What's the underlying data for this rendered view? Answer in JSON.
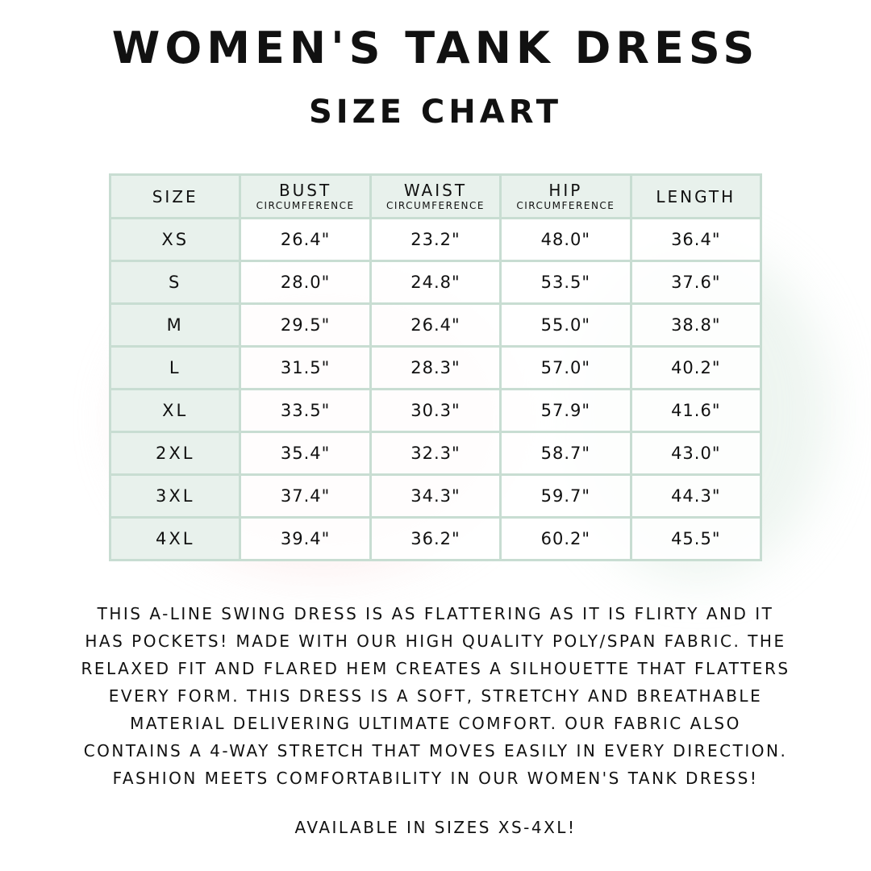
{
  "title": "Women's Tank Dress",
  "subtitle": "Size Chart",
  "colors": {
    "header_bg": "#e8f1ec",
    "border": "#c8ddd2"
  },
  "table": {
    "headers": [
      {
        "main": "Size",
        "sub": ""
      },
      {
        "main": "Bust",
        "sub": "Circumference"
      },
      {
        "main": "Waist",
        "sub": "Circumference"
      },
      {
        "main": "Hip",
        "sub": "Circumference"
      },
      {
        "main": "Length",
        "sub": ""
      }
    ],
    "rows": [
      [
        "XS",
        "26.4\"",
        "23.2\"",
        "48.0\"",
        "36.4\""
      ],
      [
        "S",
        "28.0\"",
        "24.8\"",
        "53.5\"",
        "37.6\""
      ],
      [
        "M",
        "29.5\"",
        "26.4\"",
        "55.0\"",
        "38.8\""
      ],
      [
        "L",
        "31.5\"",
        "28.3\"",
        "57.0\"",
        "40.2\""
      ],
      [
        "XL",
        "33.5\"",
        "30.3\"",
        "57.9\"",
        "41.6\""
      ],
      [
        "2XL",
        "35.4\"",
        "32.3\"",
        "58.7\"",
        "43.0\""
      ],
      [
        "3XL",
        "37.4\"",
        "34.3\"",
        "59.7\"",
        "44.3\""
      ],
      [
        "4XL",
        "39.4\"",
        "36.2\"",
        "60.2\"",
        "45.5\""
      ]
    ]
  },
  "description_lines": [
    "This A-line swing dress is as flattering as it is flirty and it",
    "has pockets! Made with our high quality poly/span fabric. The",
    "relaxed fit and flared hem creates a silhouette that flatters",
    "every form. This dress is a soft, stretchy and breathable",
    "material delivering ultimate comfort. Our fabric also",
    "contains a 4-way stretch that moves easily in every direction.",
    "Fashion meets comfortability in our women's tank dress!"
  ],
  "availability": "Available in sizes XS-4XL!"
}
